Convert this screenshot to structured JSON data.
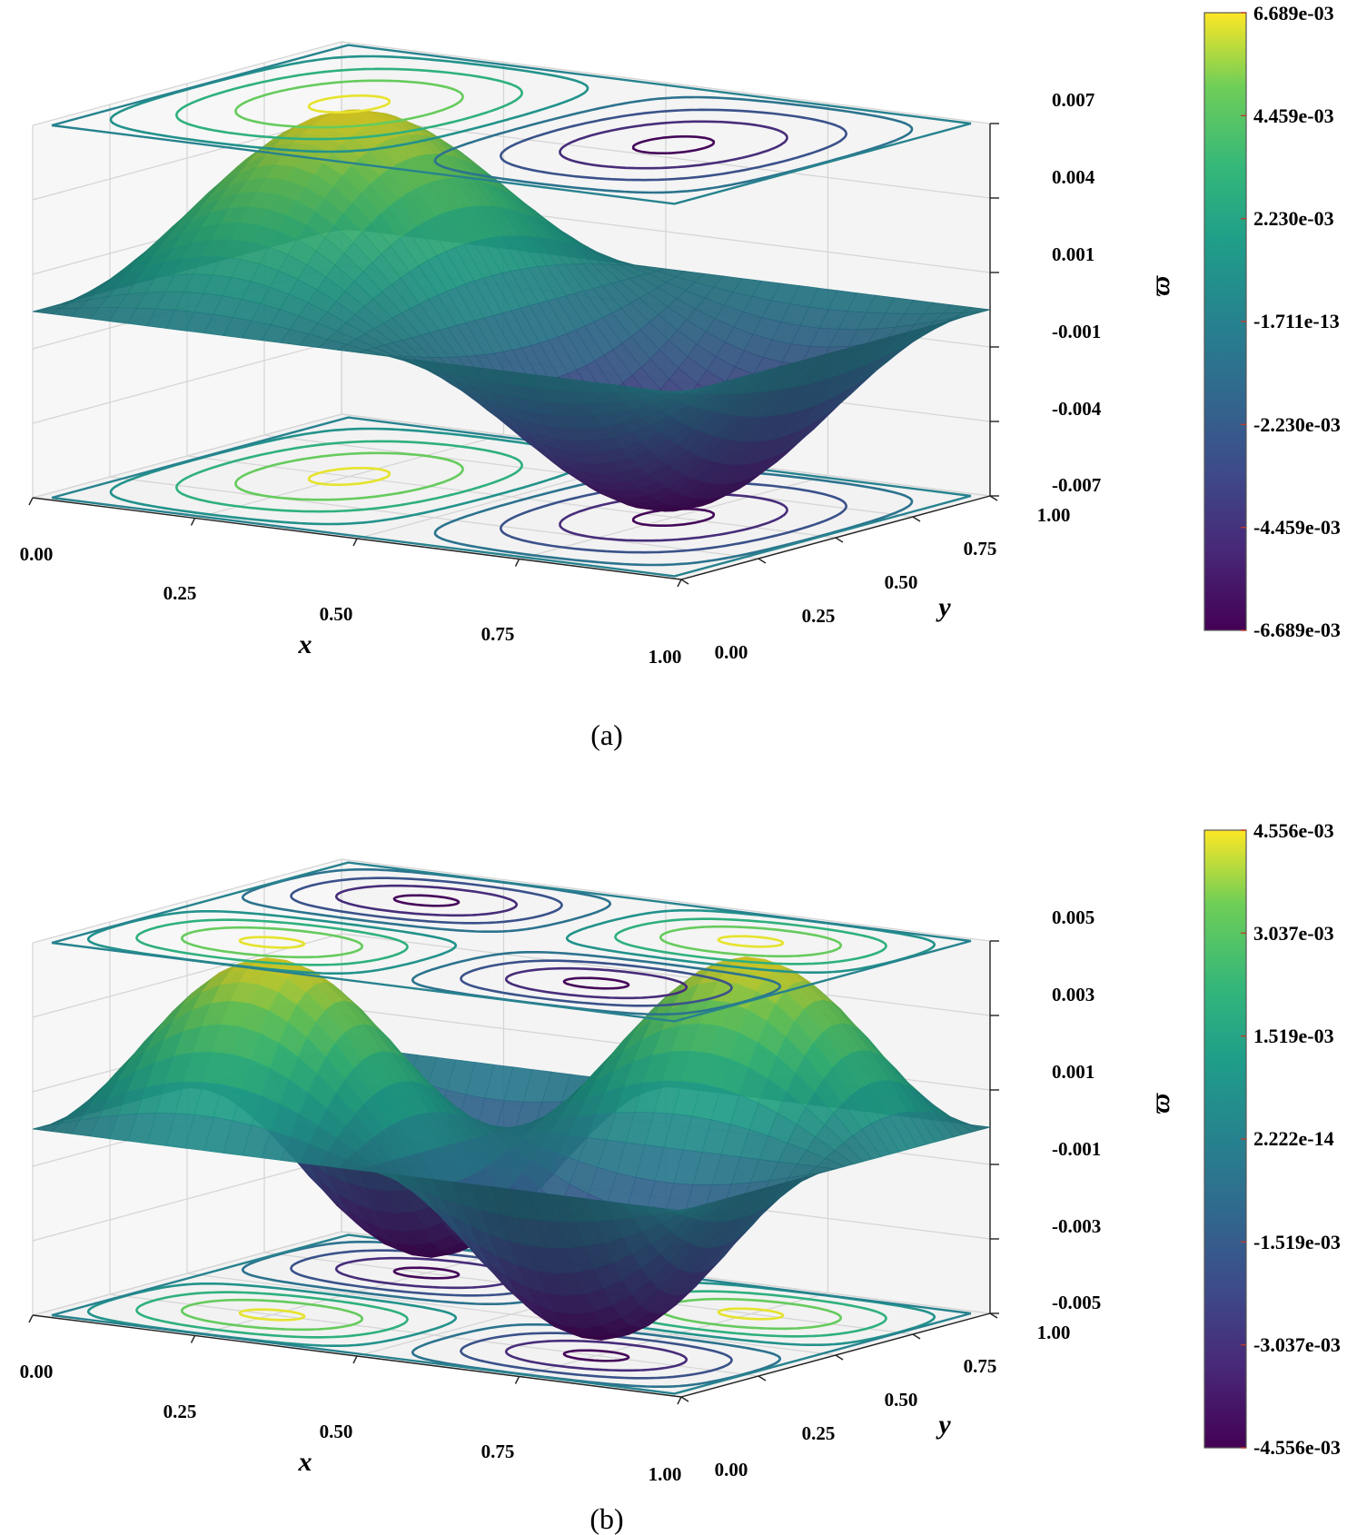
{
  "chart_data": [
    {
      "type": "surface3d",
      "panel_caption": "(a)",
      "xlabel": "x",
      "ylabel": "y",
      "zlabel": "ϖ",
      "x_ticks": [
        "0.00",
        "0.25",
        "0.50",
        "0.75",
        "1.00"
      ],
      "y_ticks": [
        "0.00",
        "0.25",
        "0.50",
        "0.75",
        "1.00"
      ],
      "z_ticks": [
        "-0.007",
        "-0.004",
        "-0.001",
        "0.001",
        "0.004",
        "0.007"
      ],
      "zlim": [
        -0.007,
        0.007
      ],
      "function": "A*sin(2*pi*x)*sin(pi*y)",
      "amplitude": 0.006689,
      "colorbar": {
        "labels": [
          "6.689e-03",
          "4.459e-03",
          "2.230e-03",
          "-1.711e-13",
          "-2.230e-03",
          "-4.459e-03",
          "-6.689e-03"
        ],
        "min": -0.006689,
        "max": 0.006689
      }
    },
    {
      "type": "surface3d",
      "panel_caption": "(b)",
      "xlabel": "x",
      "ylabel": "y",
      "zlabel": "ϖ",
      "x_ticks": [
        "0.00",
        "0.25",
        "0.50",
        "0.75",
        "1.00"
      ],
      "y_ticks": [
        "0.00",
        "0.25",
        "0.50",
        "0.75",
        "1.00"
      ],
      "z_ticks": [
        "-0.005",
        "-0.003",
        "-0.001",
        "0.001",
        "0.003",
        "0.005"
      ],
      "zlim": [
        -0.005,
        0.005
      ],
      "function": "A*sin(2*pi*x)*sin(2*pi*y)",
      "amplitude": 0.004556,
      "colorbar": {
        "labels": [
          "4.556e-03",
          "3.037e-03",
          "1.519e-03",
          "2.222e-14",
          "-1.519e-03",
          "-3.037e-03",
          "-4.556e-03"
        ],
        "min": -0.004556,
        "max": 0.004556
      }
    }
  ]
}
